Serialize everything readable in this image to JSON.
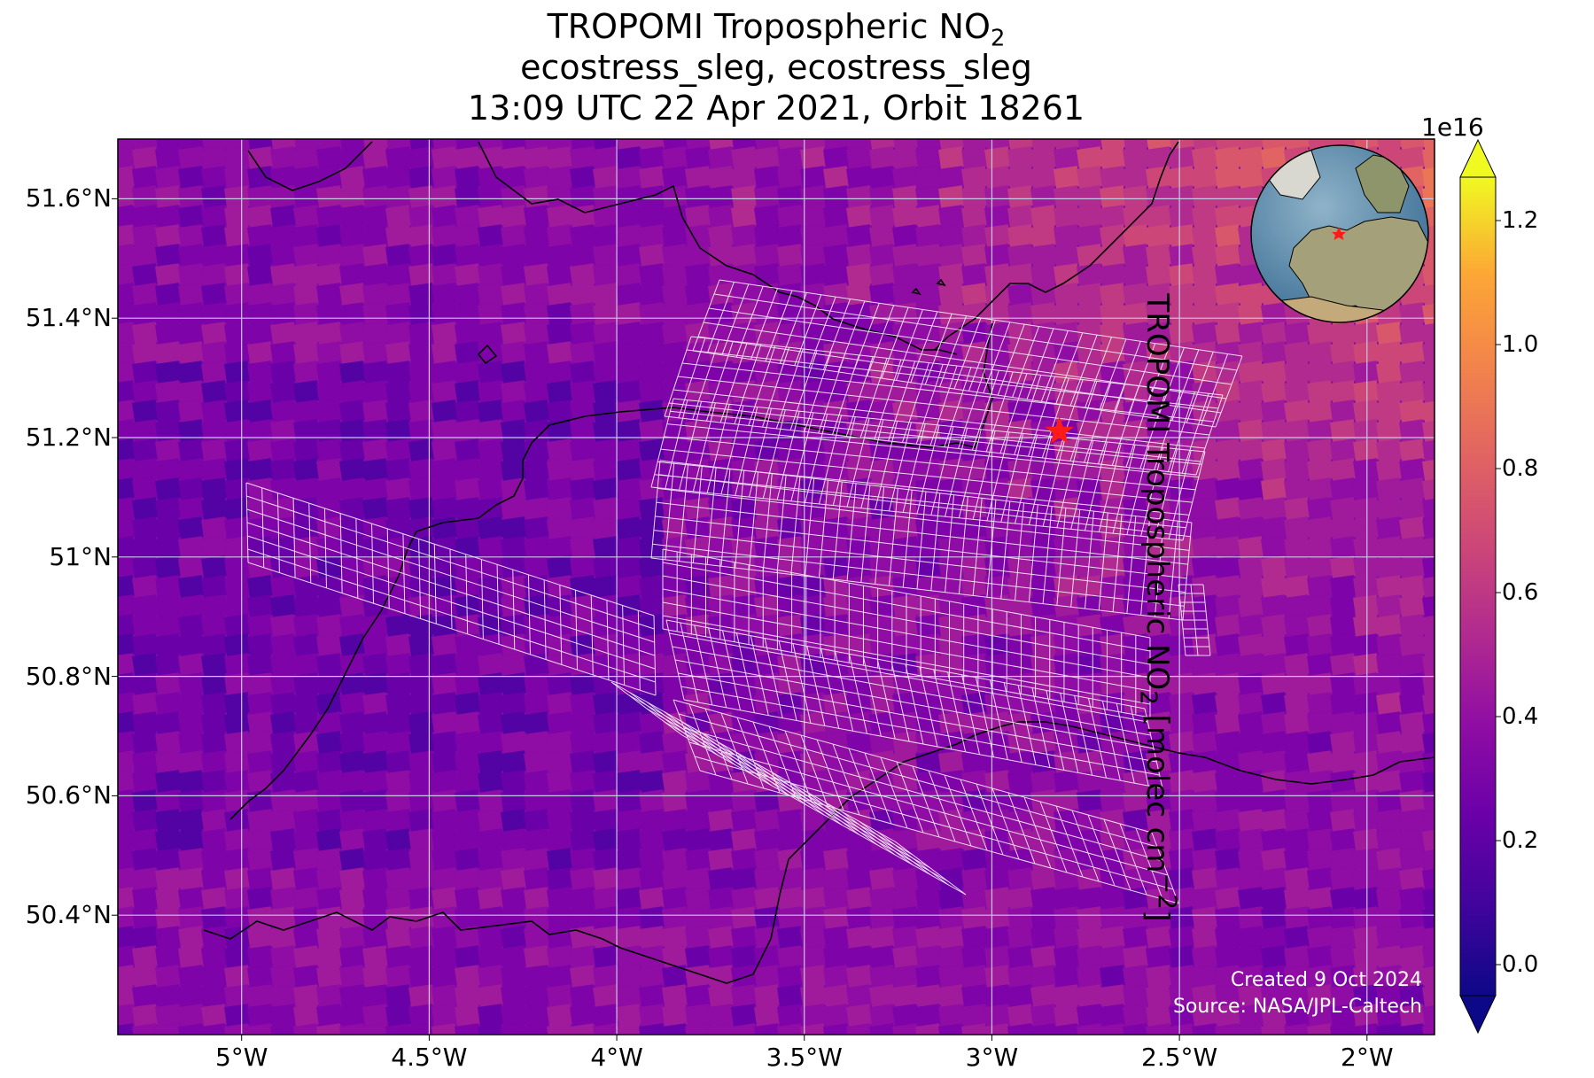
{
  "title": {
    "line1_prefix": "TROPOMI Tropospheric NO",
    "line1_sub": "2",
    "line2": "ecostress_sleg, ecostress_sleg",
    "line3": "13:09 UTC 22 Apr 2021, Orbit 18261"
  },
  "axes": {
    "lat_ticks": [
      "51.6°N",
      "51.4°N",
      "51.2°N",
      "51°N",
      "50.8°N",
      "50.6°N",
      "50.4°N"
    ],
    "lat_values": [
      51.6,
      51.4,
      51.2,
      51.0,
      50.8,
      50.6,
      50.4
    ],
    "lon_ticks": [
      "5°W",
      "4.5°W",
      "4°W",
      "3.5°W",
      "3°W",
      "2.5°W",
      "2°W"
    ],
    "lon_values": [
      -5.0,
      -4.5,
      -4.0,
      -3.5,
      -3.0,
      -2.5,
      -2.0
    ],
    "lon_range": [
      -5.33,
      -1.82
    ],
    "lat_range": [
      50.2,
      51.7
    ]
  },
  "colorbar": {
    "label_prefix": "TROPOMI Tropospheric NO",
    "label_sub": "2",
    "label_unit": " [molec cm",
    "label_sup": "−2",
    "label_end": "]",
    "exponent": "1e16",
    "ticks": [
      "1.2",
      "1.0",
      "0.8",
      "0.6",
      "0.4",
      "0.2",
      "0.0"
    ],
    "tick_values": [
      1.2,
      1.0,
      0.8,
      0.6,
      0.4,
      0.2,
      0.0
    ],
    "range": [
      -0.05,
      1.27
    ],
    "colormap": "plasma"
  },
  "target": {
    "lon": -2.82,
    "lat": 51.21,
    "marker": "star-icon",
    "color": "#ff1a1a"
  },
  "credit": {
    "line1": "Created 9 Oct 2024",
    "line2": "Source: NASA/JPL-Caltech"
  },
  "colors": {
    "grid": "#c8c8e6",
    "footprint": "#ffffff",
    "coast": "#000000",
    "star": "#ff1a1a"
  }
}
